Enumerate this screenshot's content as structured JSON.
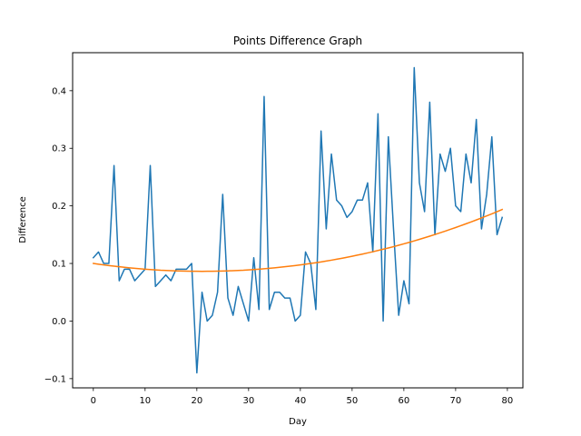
{
  "chart_data": {
    "type": "line",
    "title": "Points Difference Graph",
    "xlabel": "Day",
    "ylabel": "Difference",
    "xlim": [
      -4,
      83
    ],
    "ylim": [
      -0.116,
      0.466
    ],
    "xticks": [
      0,
      10,
      20,
      30,
      40,
      50,
      60,
      70,
      80
    ],
    "yticks": [
      -0.1,
      0.0,
      0.1,
      0.2,
      0.3,
      0.4
    ],
    "ytick_labels": [
      "−0.1",
      "0.0",
      "0.1",
      "0.2",
      "0.3",
      "0.4"
    ],
    "grid": false,
    "series": [
      {
        "color": "#1f77b4",
        "x": [
          0,
          1,
          2,
          3,
          4,
          5,
          6,
          7,
          8,
          9,
          10,
          11,
          12,
          13,
          14,
          15,
          16,
          17,
          18,
          19,
          20,
          21,
          22,
          23,
          24,
          25,
          26,
          27,
          28,
          29,
          30,
          31,
          32,
          33,
          34,
          35,
          36,
          37,
          38,
          39,
          40,
          41,
          42,
          43,
          44,
          45,
          46,
          47,
          48,
          49,
          50,
          51,
          52,
          53,
          54,
          55,
          56,
          57,
          58,
          59,
          60,
          61,
          62,
          63,
          64,
          65,
          66,
          67,
          68,
          69,
          70,
          71,
          72,
          73,
          74,
          75,
          76,
          77,
          78,
          79
        ],
        "y": [
          0.11,
          0.12,
          0.1,
          0.1,
          0.27,
          0.07,
          0.09,
          0.09,
          0.07,
          0.08,
          0.09,
          0.27,
          0.06,
          0.07,
          0.08,
          0.07,
          0.09,
          0.09,
          0.09,
          0.1,
          -0.09,
          0.05,
          0.0,
          0.01,
          0.05,
          0.22,
          0.04,
          0.01,
          0.06,
          0.03,
          0.0,
          0.11,
          0.02,
          0.39,
          0.02,
          0.05,
          0.05,
          0.04,
          0.04,
          0.0,
          0.01,
          0.12,
          0.1,
          0.02,
          0.33,
          0.16,
          0.29,
          0.21,
          0.2,
          0.18,
          0.19,
          0.21,
          0.21,
          0.24,
          0.12,
          0.36,
          0.0,
          0.32,
          0.16,
          0.01,
          0.07,
          0.03,
          0.44,
          0.24,
          0.19,
          0.38,
          0.15,
          0.29,
          0.26,
          0.3,
          0.2,
          0.19,
          0.29,
          0.24,
          0.35,
          0.16,
          0.22,
          0.32,
          0.15,
          0.18
        ]
      },
      {
        "color": "#ff7f0e",
        "x": [
          0,
          1,
          2,
          3,
          4,
          5,
          6,
          7,
          8,
          9,
          10,
          11,
          12,
          13,
          14,
          15,
          16,
          17,
          18,
          19,
          20,
          21,
          22,
          23,
          24,
          25,
          26,
          27,
          28,
          29,
          30,
          31,
          32,
          33,
          34,
          35,
          36,
          37,
          38,
          39,
          40,
          41,
          42,
          43,
          44,
          45,
          46,
          47,
          48,
          49,
          50,
          51,
          52,
          53,
          54,
          55,
          56,
          57,
          58,
          59,
          60,
          61,
          62,
          63,
          64,
          65,
          66,
          67,
          68,
          69,
          70,
          71,
          72,
          73,
          74,
          75,
          76,
          77,
          78,
          79
        ],
        "y": [
          0.1,
          0.0987,
          0.0975,
          0.0964,
          0.0953,
          0.0943,
          0.0933,
          0.0924,
          0.0916,
          0.0908,
          0.0901,
          0.0894,
          0.0889,
          0.0883,
          0.0879,
          0.0875,
          0.0871,
          0.0868,
          0.0866,
          0.0865,
          0.0864,
          0.0863,
          0.0864,
          0.0865,
          0.0866,
          0.0868,
          0.0871,
          0.0875,
          0.0879,
          0.0883,
          0.0889,
          0.0894,
          0.0901,
          0.0908,
          0.0916,
          0.0924,
          0.0933,
          0.0943,
          0.0953,
          0.0964,
          0.0975,
          0.0987,
          0.1,
          0.1013,
          0.1027,
          0.1042,
          0.1057,
          0.1073,
          0.109,
          0.1107,
          0.1125,
          0.1144,
          0.1163,
          0.1183,
          0.1203,
          0.1225,
          0.1247,
          0.1269,
          0.1292,
          0.1316,
          0.1341,
          0.1366,
          0.1392,
          0.1419,
          0.1446,
          0.1474,
          0.1503,
          0.1532,
          0.1562,
          0.1593,
          0.1624,
          0.1656,
          0.1689,
          0.1722,
          0.1756,
          0.1791,
          0.1826,
          0.1862,
          0.1899,
          0.1937
        ]
      }
    ]
  }
}
